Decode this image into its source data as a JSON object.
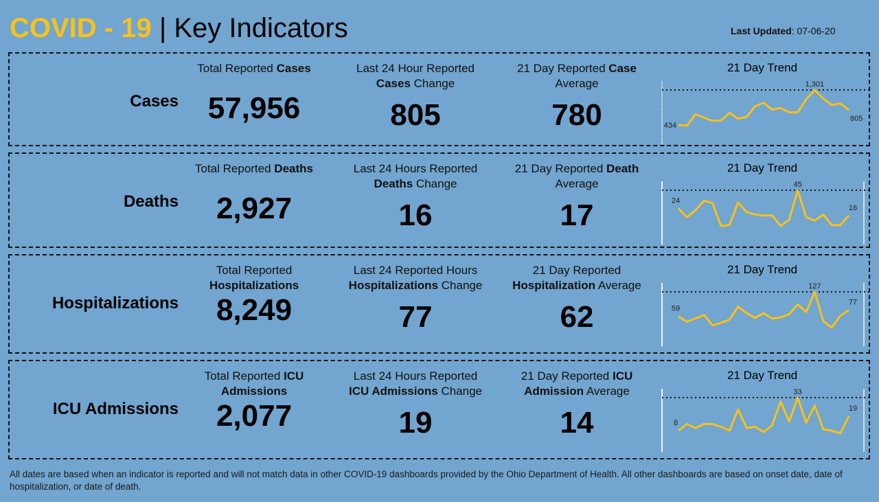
{
  "header": {
    "title_prefix": "COVID - 19",
    "title_suffix": "| Key Indicators",
    "last_updated_label": "Last Updated",
    "last_updated_value": ": 07-06-20"
  },
  "colors": {
    "background": "#72a5cf",
    "accent": "#f7c21a",
    "line": "#f7c21a"
  },
  "rows": [
    {
      "label": "Cases",
      "metrics": [
        {
          "lines": [
            [
              {
                "t": "Total Reported ",
                "b": false
              },
              {
                "t": "Cases",
                "b": true
              }
            ]
          ],
          "value": "57,956"
        },
        {
          "lines": [
            [
              {
                "t": "Last 24 Hour Reported",
                "b": false
              }
            ],
            [
              {
                "t": "Cases",
                "b": true
              },
              {
                "t": " Change",
                "b": false
              }
            ]
          ],
          "value": "805"
        },
        {
          "lines": [
            [
              {
                "t": "21 Day Reported ",
                "b": false
              },
              {
                "t": "Case",
                "b": true
              }
            ],
            [
              {
                "t": "Average",
                "b": false
              }
            ]
          ],
          "value": "780"
        }
      ],
      "trend": {
        "title": "21 Day Trend",
        "values": [
          434,
          417,
          700,
          615,
          536,
          547,
          734,
          593,
          632,
          899,
          984,
          814,
          854,
          746,
          746,
          1069,
          1301,
          1086,
          927,
          967,
          805
        ],
        "first_label": "434",
        "max_label": "1,301",
        "last_label": "805"
      }
    },
    {
      "label": "Deaths",
      "metrics": [
        {
          "lines": [
            [
              {
                "t": "Total Reported ",
                "b": false
              },
              {
                "t": "Deaths",
                "b": true
              }
            ]
          ],
          "value": "2,927"
        },
        {
          "lines": [
            [
              {
                "t": "Last 24 Hours Reported",
                "b": false
              }
            ],
            [
              {
                "t": "Deaths",
                "b": true
              },
              {
                "t": " Change",
                "b": false
              }
            ]
          ],
          "value": "16"
        },
        {
          "lines": [
            [
              {
                "t": "21 Day Reported ",
                "b": false
              },
              {
                "t": "Death",
                "b": true
              }
            ],
            [
              {
                "t": "Average",
                "b": false
              }
            ]
          ],
          "value": "17"
        }
      ],
      "trend": {
        "title": "21 Day Trend",
        "values": [
          24,
          14,
          22,
          33,
          30,
          4,
          5,
          31,
          20,
          17,
          16,
          16,
          4,
          11,
          45,
          14,
          10,
          17,
          5,
          5,
          16
        ],
        "first_label": "24",
        "max_label": "45",
        "last_label": "16"
      }
    },
    {
      "label": "Hospitalizations",
      "metrics": [
        {
          "lines": [
            [
              {
                "t": "Total Reported",
                "b": false
              }
            ],
            [
              {
                "t": "Hospitalizations",
                "b": true
              }
            ]
          ],
          "value": "8,249"
        },
        {
          "lines": [
            [
              {
                "t": "Last 24 Reported Hours",
                "b": false
              }
            ],
            [
              {
                "t": "Hospitalizations",
                "b": true
              },
              {
                "t": " Change",
                "b": false
              }
            ]
          ],
          "value": "77"
        },
        {
          "lines": [
            [
              {
                "t": "21 Day Reported",
                "b": false
              }
            ],
            [
              {
                "t": "Hospitalization",
                "b": true
              },
              {
                "t": " Average",
                "b": false
              }
            ]
          ],
          "value": "62"
        }
      ],
      "trend": {
        "title": "21 Day Trend",
        "values": [
          59,
          44,
          53,
          63,
          34,
          41,
          50,
          86,
          68,
          55,
          68,
          53,
          56,
          65,
          92,
          71,
          127,
          46,
          28,
          60,
          77
        ],
        "first_label": "59",
        "max_label": "127",
        "last_label": "77"
      }
    },
    {
      "label": "ICU Admissions",
      "metrics": [
        {
          "lines": [
            [
              {
                "t": "Total Reported ",
                "b": false
              },
              {
                "t": "ICU",
                "b": true
              }
            ],
            [
              {
                "t": "Admissions",
                "b": true
              }
            ]
          ],
          "value": "2,077"
        },
        {
          "lines": [
            [
              {
                "t": "Last 24 Hours Reported",
                "b": false
              }
            ],
            [
              {
                "t": "ICU Admissions",
                "b": true
              },
              {
                "t": " Change",
                "b": false
              }
            ]
          ],
          "value": "19"
        },
        {
          "lines": [
            [
              {
                "t": "21 Day Reported ",
                "b": false
              },
              {
                "t": "ICU",
                "b": true
              }
            ],
            [
              {
                "t": "Admission",
                "b": true
              },
              {
                "t": " Average",
                "b": false
              }
            ]
          ],
          "value": "14"
        }
      ],
      "trend": {
        "title": "21 Day Trend",
        "values": [
          8,
          13,
          10,
          13,
          13,
          11,
          8,
          24,
          10,
          11,
          7,
          12,
          30,
          15,
          33,
          14,
          27,
          9,
          8,
          6,
          19
        ],
        "first_label": "8",
        "max_label": "33",
        "last_label": "19"
      }
    }
  ],
  "footer": "All dates are based when an indicator is reported and will not match data in other COVID-19 dashboards provided by the Ohio Department of Health. All other dashboards are based on onset date, date of hospitalization, or date of death."
}
